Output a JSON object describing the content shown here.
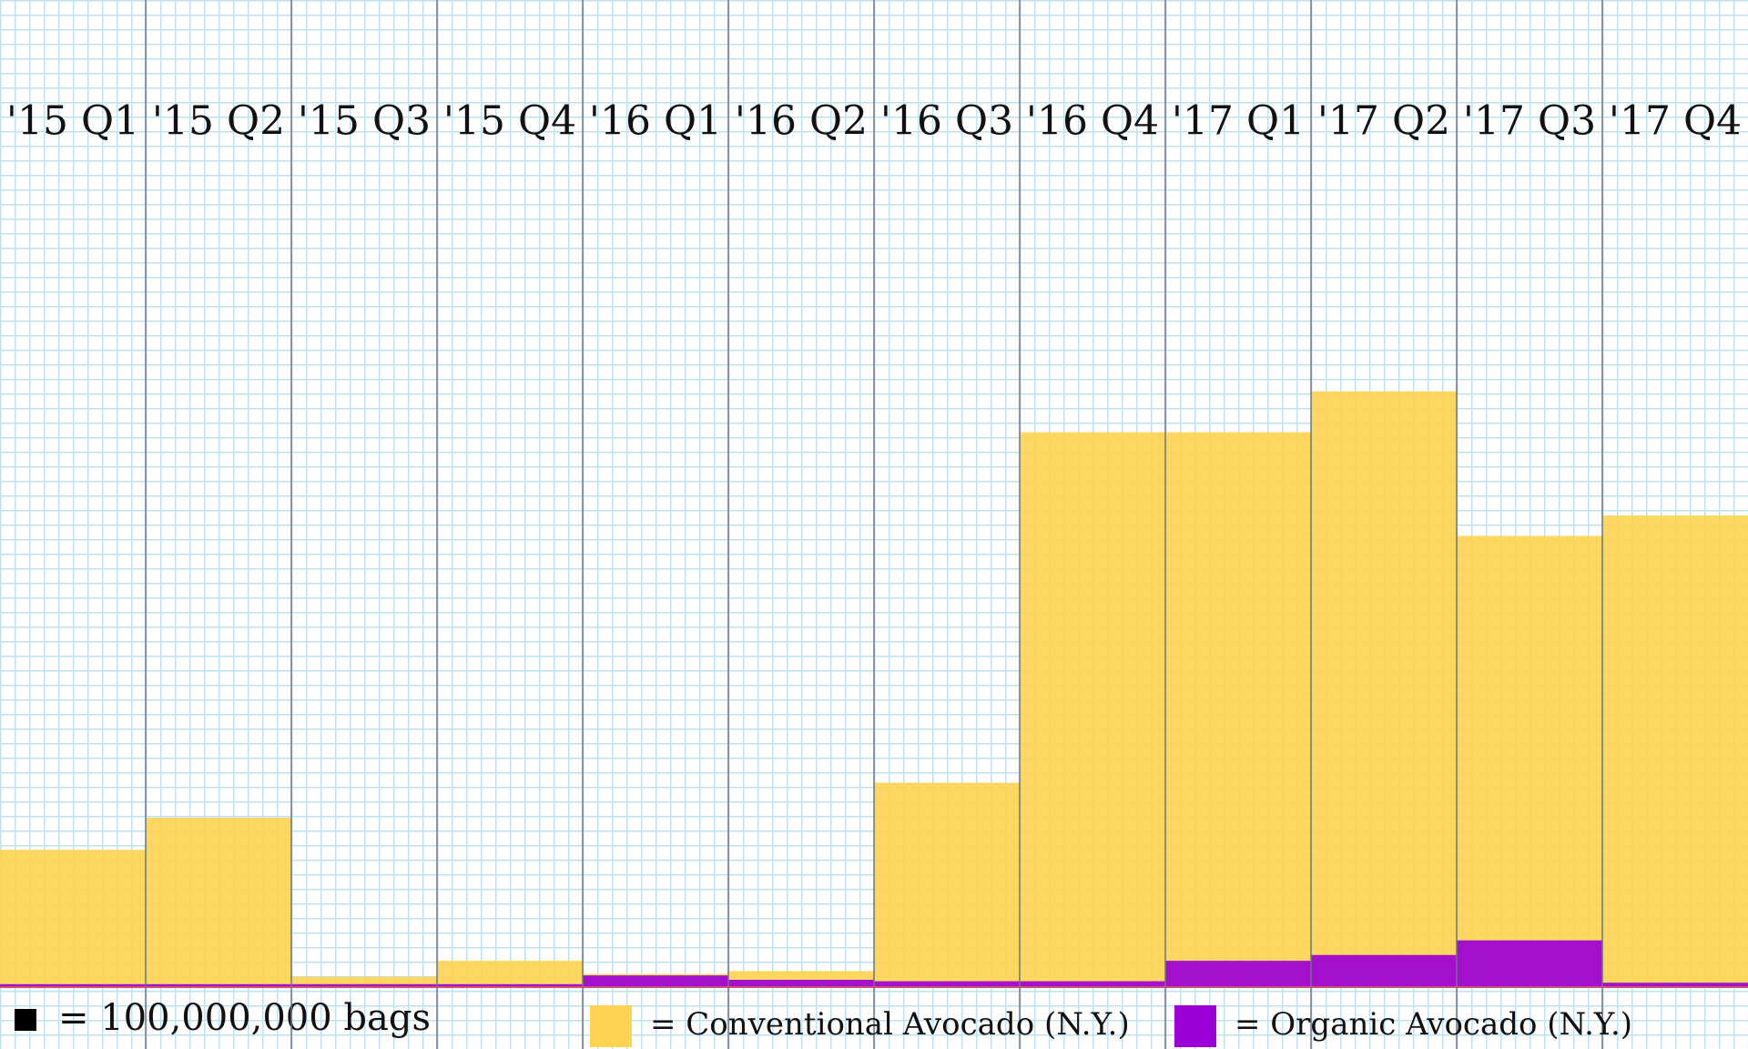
{
  "chart_data": {
    "type": "bar",
    "categories": [
      "'15 Q1",
      "'15 Q2",
      "'15 Q3",
      "'15 Q4",
      "'16 Q1",
      "'16 Q2",
      "'16 Q3",
      "'16 Q4",
      "'17 Q1",
      "'17 Q2",
      "'17 Q3",
      "'17 Q4"
    ],
    "unit_label": "= 100,000,000 bags",
    "series": [
      {
        "name": "= Conventional Avocado (N.Y.)",
        "color": "#fdd452",
        "values": [
          940000000,
          1160000000,
          70000000,
          180000000,
          90000000,
          110000000,
          1400000000,
          3800000000,
          3800000000,
          4080000000,
          3090000000,
          3230000000
        ]
      },
      {
        "name": "= Organic Avocado (N.Y.)",
        "color": "#9b00d6",
        "values": [
          20000000,
          20000000,
          20000000,
          20000000,
          80000000,
          50000000,
          40000000,
          40000000,
          180000000,
          220000000,
          320000000,
          30000000
        ]
      }
    ],
    "ylim": [
      0,
      6760000000
    ]
  }
}
